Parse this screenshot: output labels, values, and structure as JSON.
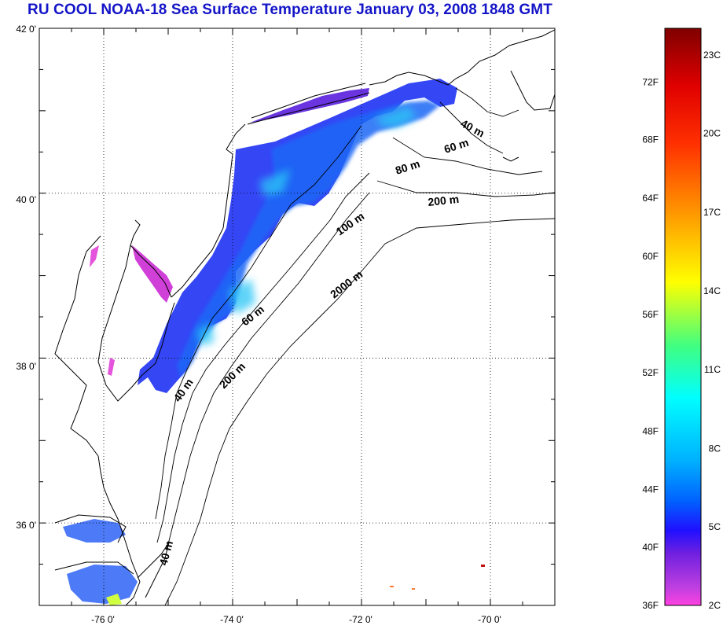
{
  "title": "RU COOL  NOAA-18 Sea Surface Temperature January 03, 2008 1848 GMT",
  "map": {
    "lon_range": [
      -77.0,
      -69.0
    ],
    "lat_range": [
      35.0,
      42.0
    ],
    "x_ticks": [
      {
        "value": -76,
        "label": "-76 0'"
      },
      {
        "value": -74,
        "label": "-74 0'"
      },
      {
        "value": -72,
        "label": "-72 0'"
      },
      {
        "value": -70,
        "label": "-70 0'"
      }
    ],
    "y_ticks": [
      {
        "value": 42,
        "label": "42 0'"
      },
      {
        "value": 40,
        "label": "40 0'"
      },
      {
        "value": 38,
        "label": "38 0'"
      },
      {
        "value": 36,
        "label": "36 0'"
      }
    ],
    "grid": "dotted",
    "land_color": "#ffffff",
    "coast_color": "#000000",
    "contour_labels": [
      "40 m",
      "60 m",
      "80 m",
      "200 m",
      "100 m",
      "2000 m",
      "60 m",
      "40 m",
      "200 m",
      "40 m"
    ]
  },
  "colorbar": {
    "range_celsius": [
      2,
      24
    ],
    "stops": [
      "#ff40e0",
      "#c040e0",
      "#7020e0",
      "#2010ff",
      "#0060ff",
      "#00b0ff",
      "#00ffff",
      "#40ff80",
      "#ffff00",
      "#ffa000",
      "#ff3000",
      "#e00000",
      "#800000"
    ],
    "fahrenheit_labels": [
      {
        "label": "72F",
        "frac": 0.907
      },
      {
        "label": "68F",
        "frac": 0.807
      },
      {
        "label": "64F",
        "frac": 0.706
      },
      {
        "label": "60F",
        "frac": 0.605
      },
      {
        "label": "56F",
        "frac": 0.504
      },
      {
        "label": "52F",
        "frac": 0.403
      },
      {
        "label": "48F",
        "frac": 0.302
      },
      {
        "label": "44F",
        "frac": 0.201
      },
      {
        "label": "40F",
        "frac": 0.101
      },
      {
        "label": "36F",
        "frac": 0.0
      }
    ],
    "celsius_labels": [
      {
        "label": "23C",
        "frac": 0.954
      },
      {
        "label": "20C",
        "frac": 0.818
      },
      {
        "label": "17C",
        "frac": 0.681
      },
      {
        "label": "14C",
        "frac": 0.545
      },
      {
        "label": "11C",
        "frac": 0.409
      },
      {
        "label": "8C",
        "frac": 0.272
      },
      {
        "label": "5C",
        "frac": 0.136
      },
      {
        "label": "2C",
        "frac": 0.0
      }
    ]
  }
}
